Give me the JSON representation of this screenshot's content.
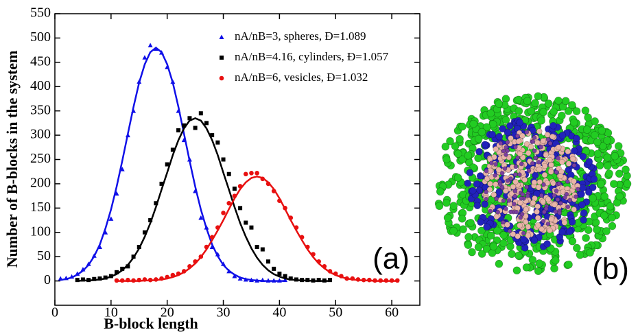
{
  "chart_data": {
    "type": "scatter",
    "xlabel": "B-block length",
    "ylabel": "Number of B-blocks in the system",
    "panel_labels": [
      "(a)",
      "(b)"
    ],
    "xlim": [
      0,
      65
    ],
    "xticks": [
      0,
      10,
      20,
      30,
      40,
      50,
      60
    ],
    "ylim": [
      -50,
      550
    ],
    "yticks": [
      0,
      50,
      100,
      150,
      200,
      250,
      300,
      350,
      400,
      450,
      500,
      550
    ],
    "legend": "upper right",
    "series": [
      {
        "name": "nA/nB=3, spheres, Đ=1.089",
        "color": "#1010e8",
        "marker": "triangle",
        "x": [
          1,
          2,
          3,
          4,
          5,
          6,
          7,
          8,
          9,
          10,
          11,
          12,
          13,
          14,
          15,
          16,
          17,
          18,
          19,
          20,
          21,
          22,
          23,
          24,
          25,
          26,
          27,
          28,
          29,
          30,
          31,
          32,
          33,
          34,
          35,
          36,
          37,
          38,
          39,
          40,
          41
        ],
        "values": [
          5,
          6,
          9,
          15,
          24,
          35,
          52,
          70,
          100,
          128,
          180,
          230,
          300,
          350,
          410,
          460,
          485,
          478,
          470,
          440,
          410,
          350,
          290,
          250,
          185,
          130,
          110,
          70,
          55,
          35,
          20,
          10,
          5,
          3,
          2,
          1,
          2,
          1,
          1,
          1,
          2
        ],
        "fit": [
          2,
          4,
          7,
          13,
          21,
          33,
          51,
          75,
          108,
          147,
          194,
          247,
          303,
          358,
          408,
          446,
          471,
          480,
          471,
          446,
          408,
          358,
          303,
          247,
          194,
          147,
          108,
          75,
          51,
          33,
          21,
          13,
          7,
          4,
          2,
          1,
          0,
          0,
          0,
          0,
          0
        ]
      },
      {
        "name": "nA/nB=4.16, cylinders, Đ=1.057",
        "color": "#000000",
        "marker": "square",
        "x": [
          4,
          5,
          6,
          7,
          8,
          9,
          10,
          11,
          12,
          13,
          14,
          15,
          16,
          17,
          18,
          19,
          20,
          21,
          22,
          23,
          24,
          25,
          26,
          27,
          28,
          29,
          30,
          31,
          32,
          33,
          34,
          35,
          36,
          37,
          38,
          39,
          40,
          41,
          42,
          43,
          44,
          45,
          46,
          47,
          48,
          49
        ],
        "values": [
          2,
          3,
          2,
          4,
          5,
          7,
          10,
          18,
          25,
          30,
          50,
          70,
          100,
          125,
          160,
          200,
          240,
          270,
          310,
          320,
          335,
          315,
          345,
          325,
          300,
          285,
          250,
          220,
          190,
          150,
          120,
          110,
          70,
          65,
          40,
          25,
          15,
          10,
          5,
          3,
          2,
          2,
          1,
          2,
          1,
          2
        ],
        "fit": [
          0,
          1,
          1,
          2,
          3,
          5,
          9,
          14,
          22,
          33,
          48,
          67,
          91,
          119,
          152,
          188,
          223,
          259,
          290,
          314,
          330,
          335,
          330,
          314,
          290,
          259,
          223,
          188,
          152,
          119,
          91,
          67,
          48,
          33,
          22,
          14,
          9,
          5,
          3,
          2,
          1,
          1,
          0,
          0,
          0,
          0
        ]
      },
      {
        "name": "nA/nB=6, vesicles, Đ=1.032",
        "color": "#e81010",
        "marker": "circle",
        "x": [
          11,
          12,
          13,
          14,
          15,
          16,
          17,
          18,
          19,
          20,
          21,
          22,
          23,
          24,
          25,
          26,
          27,
          28,
          29,
          30,
          31,
          32,
          33,
          34,
          35,
          36,
          37,
          38,
          39,
          40,
          41,
          42,
          43,
          44,
          45,
          46,
          47,
          48,
          49,
          50,
          51,
          52,
          53,
          54,
          55,
          56,
          57,
          58,
          59,
          60,
          61
        ],
        "values": [
          1,
          1,
          2,
          1,
          2,
          3,
          2,
          3,
          5,
          8,
          12,
          15,
          20,
          30,
          40,
          50,
          70,
          90,
          110,
          140,
          160,
          175,
          195,
          220,
          222,
          222,
          210,
          200,
          185,
          165,
          150,
          130,
          110,
          90,
          70,
          55,
          40,
          30,
          20,
          15,
          10,
          5,
          5,
          3,
          2,
          2,
          1,
          1,
          1,
          1,
          1
        ],
        "fit": [
          0,
          0,
          0,
          0,
          0,
          1,
          1,
          2,
          3,
          5,
          8,
          12,
          18,
          26,
          36,
          49,
          65,
          84,
          104,
          125,
          148,
          170,
          189,
          203,
          212,
          215,
          212,
          203,
          189,
          170,
          148,
          125,
          104,
          84,
          65,
          49,
          36,
          26,
          18,
          12,
          8,
          5,
          3,
          2,
          1,
          1,
          0,
          0,
          0,
          0,
          0
        ]
      }
    ]
  }
}
